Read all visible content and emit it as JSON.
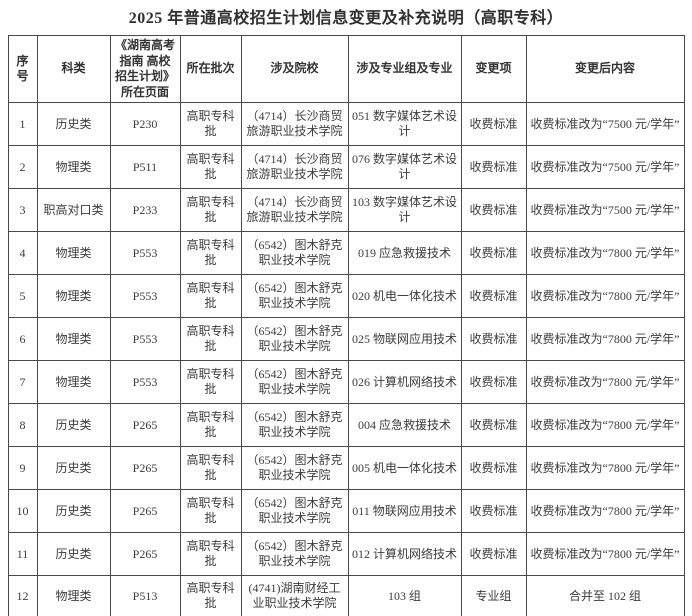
{
  "title": "2025 年普通高校招生计划信息变更及补充说明（高职专科）",
  "table": {
    "headers": [
      "序号",
      "科类",
      "《湖南高考 指南 高校 招生计划》 所在页面",
      "所在批次",
      "涉及院校",
      "涉及专业组及专业",
      "变更项",
      "变更后内容"
    ],
    "rows": [
      {
        "seq": "1",
        "category": "历史类",
        "page": "P230",
        "batch": "高职专科批",
        "school": "（4714）长沙商贸旅游职业技术学院",
        "major": "051 数字媒体艺术设计",
        "item": "收费标准",
        "content": "收费标准改为“7500 元/学年”"
      },
      {
        "seq": "2",
        "category": "物理类",
        "page": "P511",
        "batch": "高职专科批",
        "school": "（4714）长沙商贸旅游职业技术学院",
        "major": "076 数字媒体艺术设计",
        "item": "收费标准",
        "content": "收费标准改为“7500 元/学年”"
      },
      {
        "seq": "3",
        "category": "职高对口类",
        "page": "P233",
        "batch": "高职专科批",
        "school": "（4714）长沙商贸旅游职业技术学院",
        "major": "103 数字媒体艺术设计",
        "item": "收费标准",
        "content": "收费标准改为“7500 元/学年”"
      },
      {
        "seq": "4",
        "category": "物理类",
        "page": "P553",
        "batch": "高职专科批",
        "school": "（6542）图木舒克职业技术学院",
        "major": "019 应急救援技术",
        "item": "收费标准",
        "content": "收费标准改为“7800 元/学年”"
      },
      {
        "seq": "5",
        "category": "物理类",
        "page": "P553",
        "batch": "高职专科批",
        "school": "（6542）图木舒克职业技术学院",
        "major": "020 机电一体化技术",
        "item": "收费标准",
        "content": "收费标准改为“7800 元/学年”"
      },
      {
        "seq": "6",
        "category": "物理类",
        "page": "P553",
        "batch": "高职专科批",
        "school": "（6542）图木舒克职业技术学院",
        "major": "025 物联网应用技术",
        "item": "收费标准",
        "content": "收费标准改为“7800 元/学年”"
      },
      {
        "seq": "7",
        "category": "物理类",
        "page": "P553",
        "batch": "高职专科批",
        "school": "（6542）图木舒克职业技术学院",
        "major": "026 计算机网络技术",
        "item": "收费标准",
        "content": "收费标准改为“7800 元/学年”"
      },
      {
        "seq": "8",
        "category": "历史类",
        "page": "P265",
        "batch": "高职专科批",
        "school": "（6542）图木舒克职业技术学院",
        "major": "004 应急救援技术",
        "item": "收费标准",
        "content": "收费标准改为“7800 元/学年”"
      },
      {
        "seq": "9",
        "category": "历史类",
        "page": "P265",
        "batch": "高职专科批",
        "school": "（6542）图木舒克职业技术学院",
        "major": "005 机电一体化技术",
        "item": "收费标准",
        "content": "收费标准改为“7800 元/学年”"
      },
      {
        "seq": "10",
        "category": "历史类",
        "page": "P265",
        "batch": "高职专科批",
        "school": "（6542）图木舒克职业技术学院",
        "major": "011 物联网应用技术",
        "item": "收费标准",
        "content": "收费标准改为“7800 元/学年”"
      },
      {
        "seq": "11",
        "category": "历史类",
        "page": "P265",
        "batch": "高职专科批",
        "school": "（6542）图木舒克职业技术学院",
        "major": "012 计算机网络技术",
        "item": "收费标准",
        "content": "收费标准改为“7800 元/学年”"
      },
      {
        "seq": "12",
        "category": "物理类",
        "page": "P513",
        "batch": "高职专科批",
        "school": "(4741)湖南财经工业职业技术学院",
        "major": "103 组",
        "item": "专业组",
        "content": "合并至 102 组"
      }
    ]
  }
}
